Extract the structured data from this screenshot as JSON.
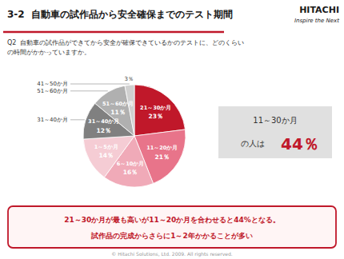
{
  "chart_data": {
    "type": "pie",
    "title": "3-2  自動車の試作品から安全確保までのテスト期間",
    "subtitle": "Q2  自動車の試作品ができてから安全が確保できているかのテストに、どのくらい\nの時間がかかっていますか。",
    "categories": [
      "21～30か月",
      "11～20か月",
      "6～10か月",
      "1～5か月",
      "31～40か月",
      "51～60か月",
      "41～50か月"
    ],
    "values": [
      23,
      21,
      16,
      14,
      12,
      11,
      3
    ],
    "value_labels": [
      "23％",
      "21％",
      "16％",
      "14％",
      "12％",
      "11％",
      "3％"
    ],
    "colors": [
      "#c0182a",
      "#e8748a",
      "#f0aab8",
      "#f5ccd4",
      "#808080",
      "#b0b0b0",
      "#d0d0d0"
    ],
    "color": "#c0182a",
    "data_labels": true,
    "annotations": [
      "HITACHI",
      "Inspire the Next",
      "11～30か月",
      "の人は",
      "44％",
      "21～30か月が最も高いが11～20か月を合わせると44%となる。",
      "試作品の完成からさらに1～2年かかることが多い",
      "© Hitachi Solutions, Ltd. 2009. All rights reserved."
    ]
  }
}
